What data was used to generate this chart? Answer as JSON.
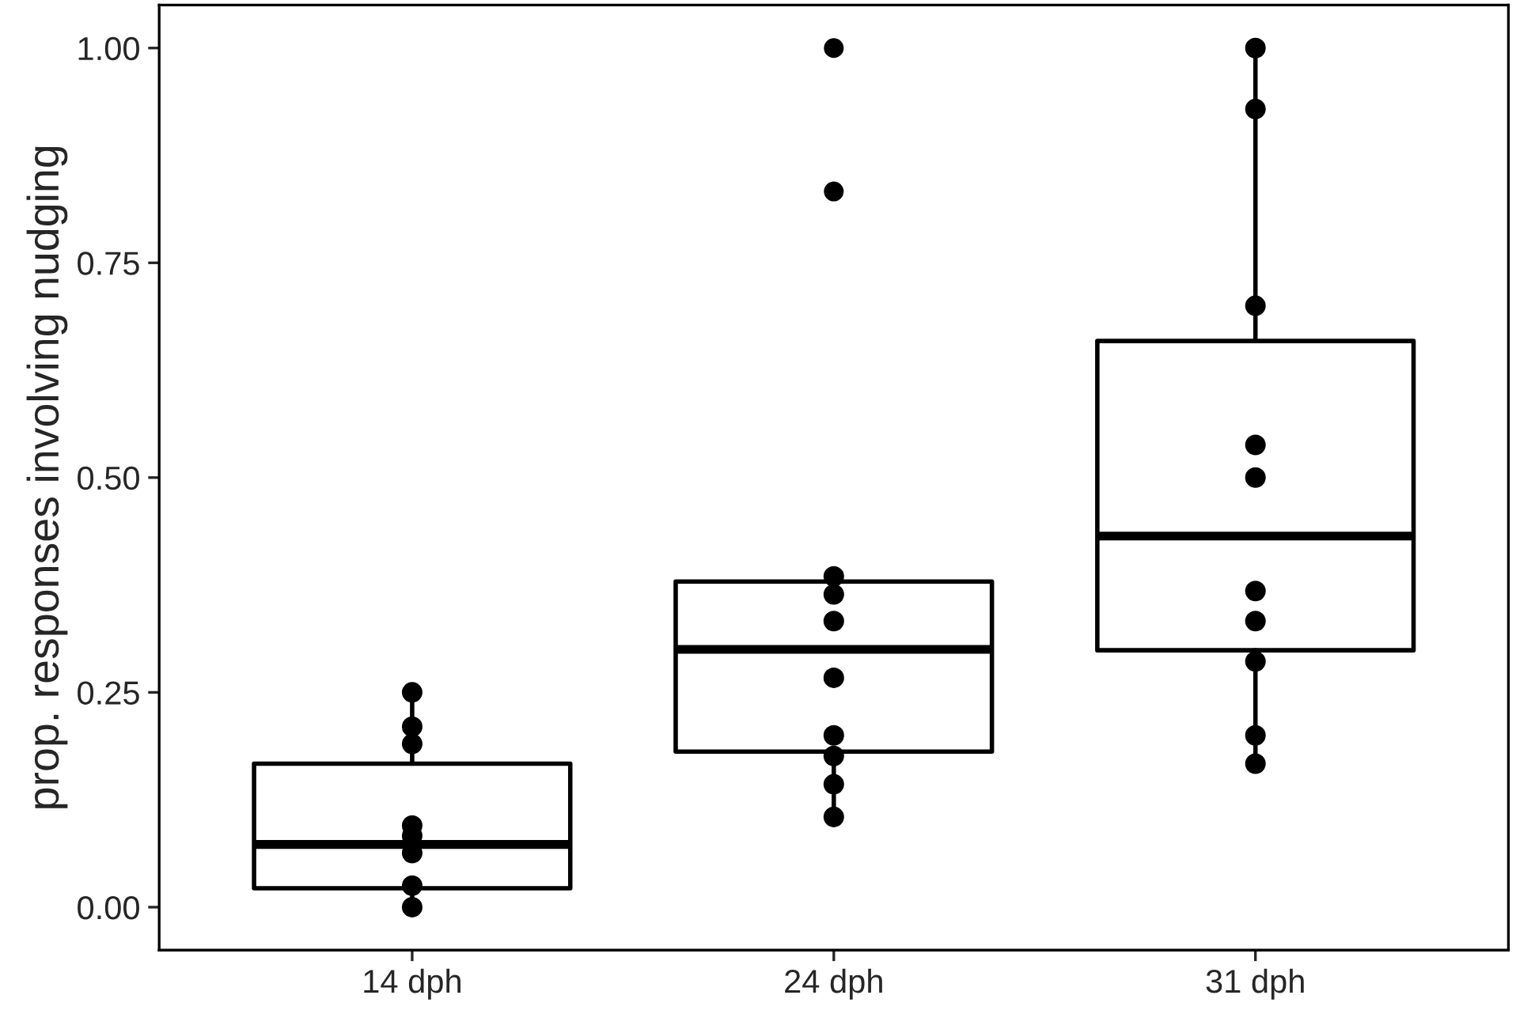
{
  "chart_data": {
    "type": "box",
    "ylabel": "prop. responses involving nudging",
    "categories": [
      "14 dph",
      "24 dph",
      "31 dph"
    ],
    "boxes": [
      {
        "low": 0.0,
        "q1": 0.022,
        "median": 0.073,
        "q3": 0.167,
        "high": 0.25
      },
      {
        "low": 0.105,
        "q1": 0.181,
        "median": 0.3,
        "q3": 0.379,
        "high": 0.385,
        "outliers": [
          1.0,
          0.833
        ]
      },
      {
        "low": 0.167,
        "q1": 0.299,
        "median": 0.432,
        "q3": 0.659,
        "high": 1.0
      }
    ],
    "series": [
      {
        "type": "scatter",
        "color": "#000000",
        "x": [
          "14 dph",
          "14 dph",
          "14 dph",
          "14 dph",
          "14 dph",
          "14 dph",
          "14 dph",
          "14 dph",
          "24 dph",
          "24 dph",
          "24 dph",
          "24 dph",
          "24 dph",
          "24 dph",
          "24 dph",
          "24 dph",
          "31 dph",
          "31 dph",
          "31 dph",
          "31 dph",
          "31 dph",
          "31 dph",
          "31 dph",
          "31 dph",
          "31 dph",
          "31 dph"
        ],
        "values": [
          0.25,
          0.21,
          0.19,
          0.095,
          0.083,
          0.063,
          0.025,
          0.0,
          0.385,
          0.364,
          0.333,
          0.267,
          0.2,
          0.176,
          0.143,
          0.105,
          1.0,
          0.929,
          0.7,
          0.538,
          0.5,
          0.368,
          0.333,
          0.286,
          0.2,
          0.167
        ]
      }
    ],
    "ylim": [
      -0.05,
      1.05
    ],
    "yticks": [
      {
        "value": 0,
        "label": "0.00"
      },
      {
        "value": 0.25,
        "label": "0.25"
      },
      {
        "value": 0.5,
        "label": "0.50"
      },
      {
        "value": 0.75,
        "label": "0.75"
      },
      {
        "value": 1,
        "label": "1.00"
      }
    ],
    "grid": false,
    "legend": false,
    "marker": "circle"
  }
}
